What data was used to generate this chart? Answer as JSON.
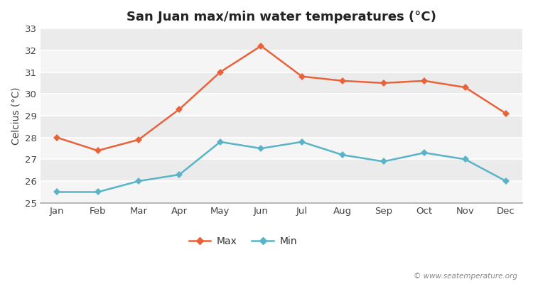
{
  "title": "San Juan max/min water temperatures (°C)",
  "ylabel": "Celcius (°C)",
  "months": [
    "Jan",
    "Feb",
    "Mar",
    "Apr",
    "May",
    "Jun",
    "Jul",
    "Aug",
    "Sep",
    "Oct",
    "Nov",
    "Dec"
  ],
  "max_temps": [
    28.0,
    27.4,
    27.9,
    29.3,
    31.0,
    32.2,
    30.8,
    30.6,
    30.5,
    30.6,
    30.3,
    29.1
  ],
  "min_temps": [
    25.5,
    25.5,
    26.0,
    26.3,
    27.8,
    27.5,
    27.8,
    27.2,
    26.9,
    27.3,
    27.0,
    26.0
  ],
  "max_color": "#e8633a",
  "min_color": "#5ab4c8",
  "fig_bg_color": "#ffffff",
  "plot_bg_color": "#ebebeb",
  "band_color": "#f5f5f5",
  "grid_color": "#ffffff",
  "spine_bottom_color": "#aaaaaa",
  "ylim": [
    25,
    33
  ],
  "yticks": [
    25,
    26,
    27,
    28,
    29,
    30,
    31,
    32,
    33
  ],
  "watermark": "© www.seatemperature.org",
  "legend_labels": [
    "Max",
    "Min"
  ]
}
